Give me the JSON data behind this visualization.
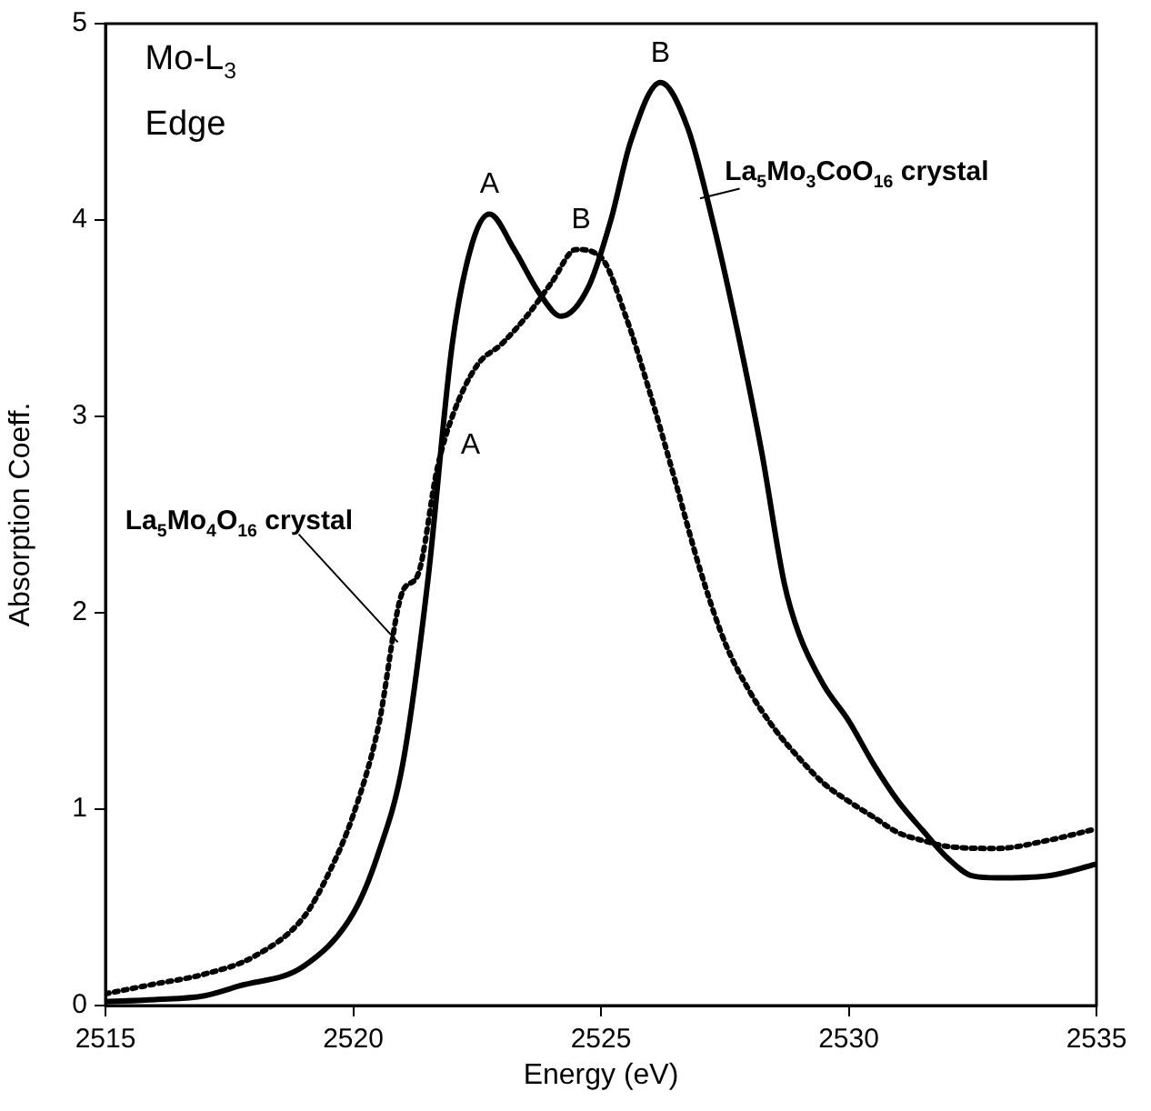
{
  "chart_data": {
    "type": "line",
    "xlabel": "Energy (eV)",
    "ylabel": "Absorption Coeff.",
    "xlim": [
      2515,
      2535
    ],
    "xticks": [
      2515,
      2520,
      2525,
      2530,
      2535
    ],
    "ylim": [
      0,
      5
    ],
    "yticks": [
      0,
      1,
      2,
      3,
      4,
      5
    ],
    "grid": false,
    "legend": false,
    "marker": "none",
    "series": [
      {
        "name": "La$_{5}$Mo$_{3}$CoO$_{16}$ crystal",
        "color": "#000000",
        "line_style": "solid",
        "x": [
          2515,
          2516,
          2517,
          2517.7,
          2519,
          2520,
          2520.5,
          2521,
          2521.5,
          2522,
          2522.4,
          2522.75,
          2523.25,
          2523.75,
          2524.2,
          2524.75,
          2525.2,
          2525.6,
          2526.2,
          2526.75,
          2527.25,
          2527.75,
          2528.25,
          2528.7,
          2529,
          2529.5,
          2530,
          2530.5,
          2531,
          2531.5,
          2532,
          2532.5,
          2533,
          2534,
          2535
        ],
        "values": [
          0.02,
          0.03,
          0.05,
          0.1,
          0.2,
          0.47,
          0.77,
          1.23,
          2.15,
          3.37,
          3.88,
          4.03,
          3.85,
          3.63,
          3.51,
          3.66,
          4.0,
          4.4,
          4.7,
          4.47,
          4.0,
          3.44,
          2.81,
          2.15,
          1.89,
          1.63,
          1.45,
          1.23,
          1.04,
          0.89,
          0.75,
          0.66,
          0.65,
          0.66,
          0.72
        ]
      },
      {
        "name": "La$_{5}$Mo$_{4}$O$_{16}$ crystal",
        "color": "#000000",
        "line_style": "dotted",
        "x": [
          2515,
          2516,
          2517,
          2518,
          2519,
          2519.5,
          2520,
          2520.5,
          2521,
          2521.3,
          2521.7,
          2522,
          2522.5,
          2523,
          2523.5,
          2524,
          2524.5,
          2525,
          2525.5,
          2526,
          2526.5,
          2527,
          2527.5,
          2528,
          2528.5,
          2529,
          2529.5,
          2530,
          2530.5,
          2531,
          2531.5,
          2532,
          2533,
          2534,
          2535
        ],
        "values": [
          0.06,
          0.11,
          0.16,
          0.25,
          0.45,
          0.67,
          0.97,
          1.41,
          2.11,
          2.19,
          2.74,
          3.0,
          3.26,
          3.37,
          3.51,
          3.68,
          3.85,
          3.81,
          3.51,
          3.11,
          2.67,
          2.22,
          1.85,
          1.6,
          1.41,
          1.26,
          1.13,
          1.04,
          0.96,
          0.88,
          0.84,
          0.81,
          0.8,
          0.84,
          0.9
        ]
      }
    ],
    "annotations": [
      "Mo-L$_{3}$ Edge",
      {
        "text": "A",
        "x": 2522.75,
        "y": 4.03
      },
      {
        "text": "B",
        "x": 2526.2,
        "y": 4.7
      },
      {
        "text": "A",
        "x": 2522,
        "y": 3.0
      },
      {
        "text": "B",
        "x": 2524.6,
        "y": 3.85
      }
    ]
  }
}
